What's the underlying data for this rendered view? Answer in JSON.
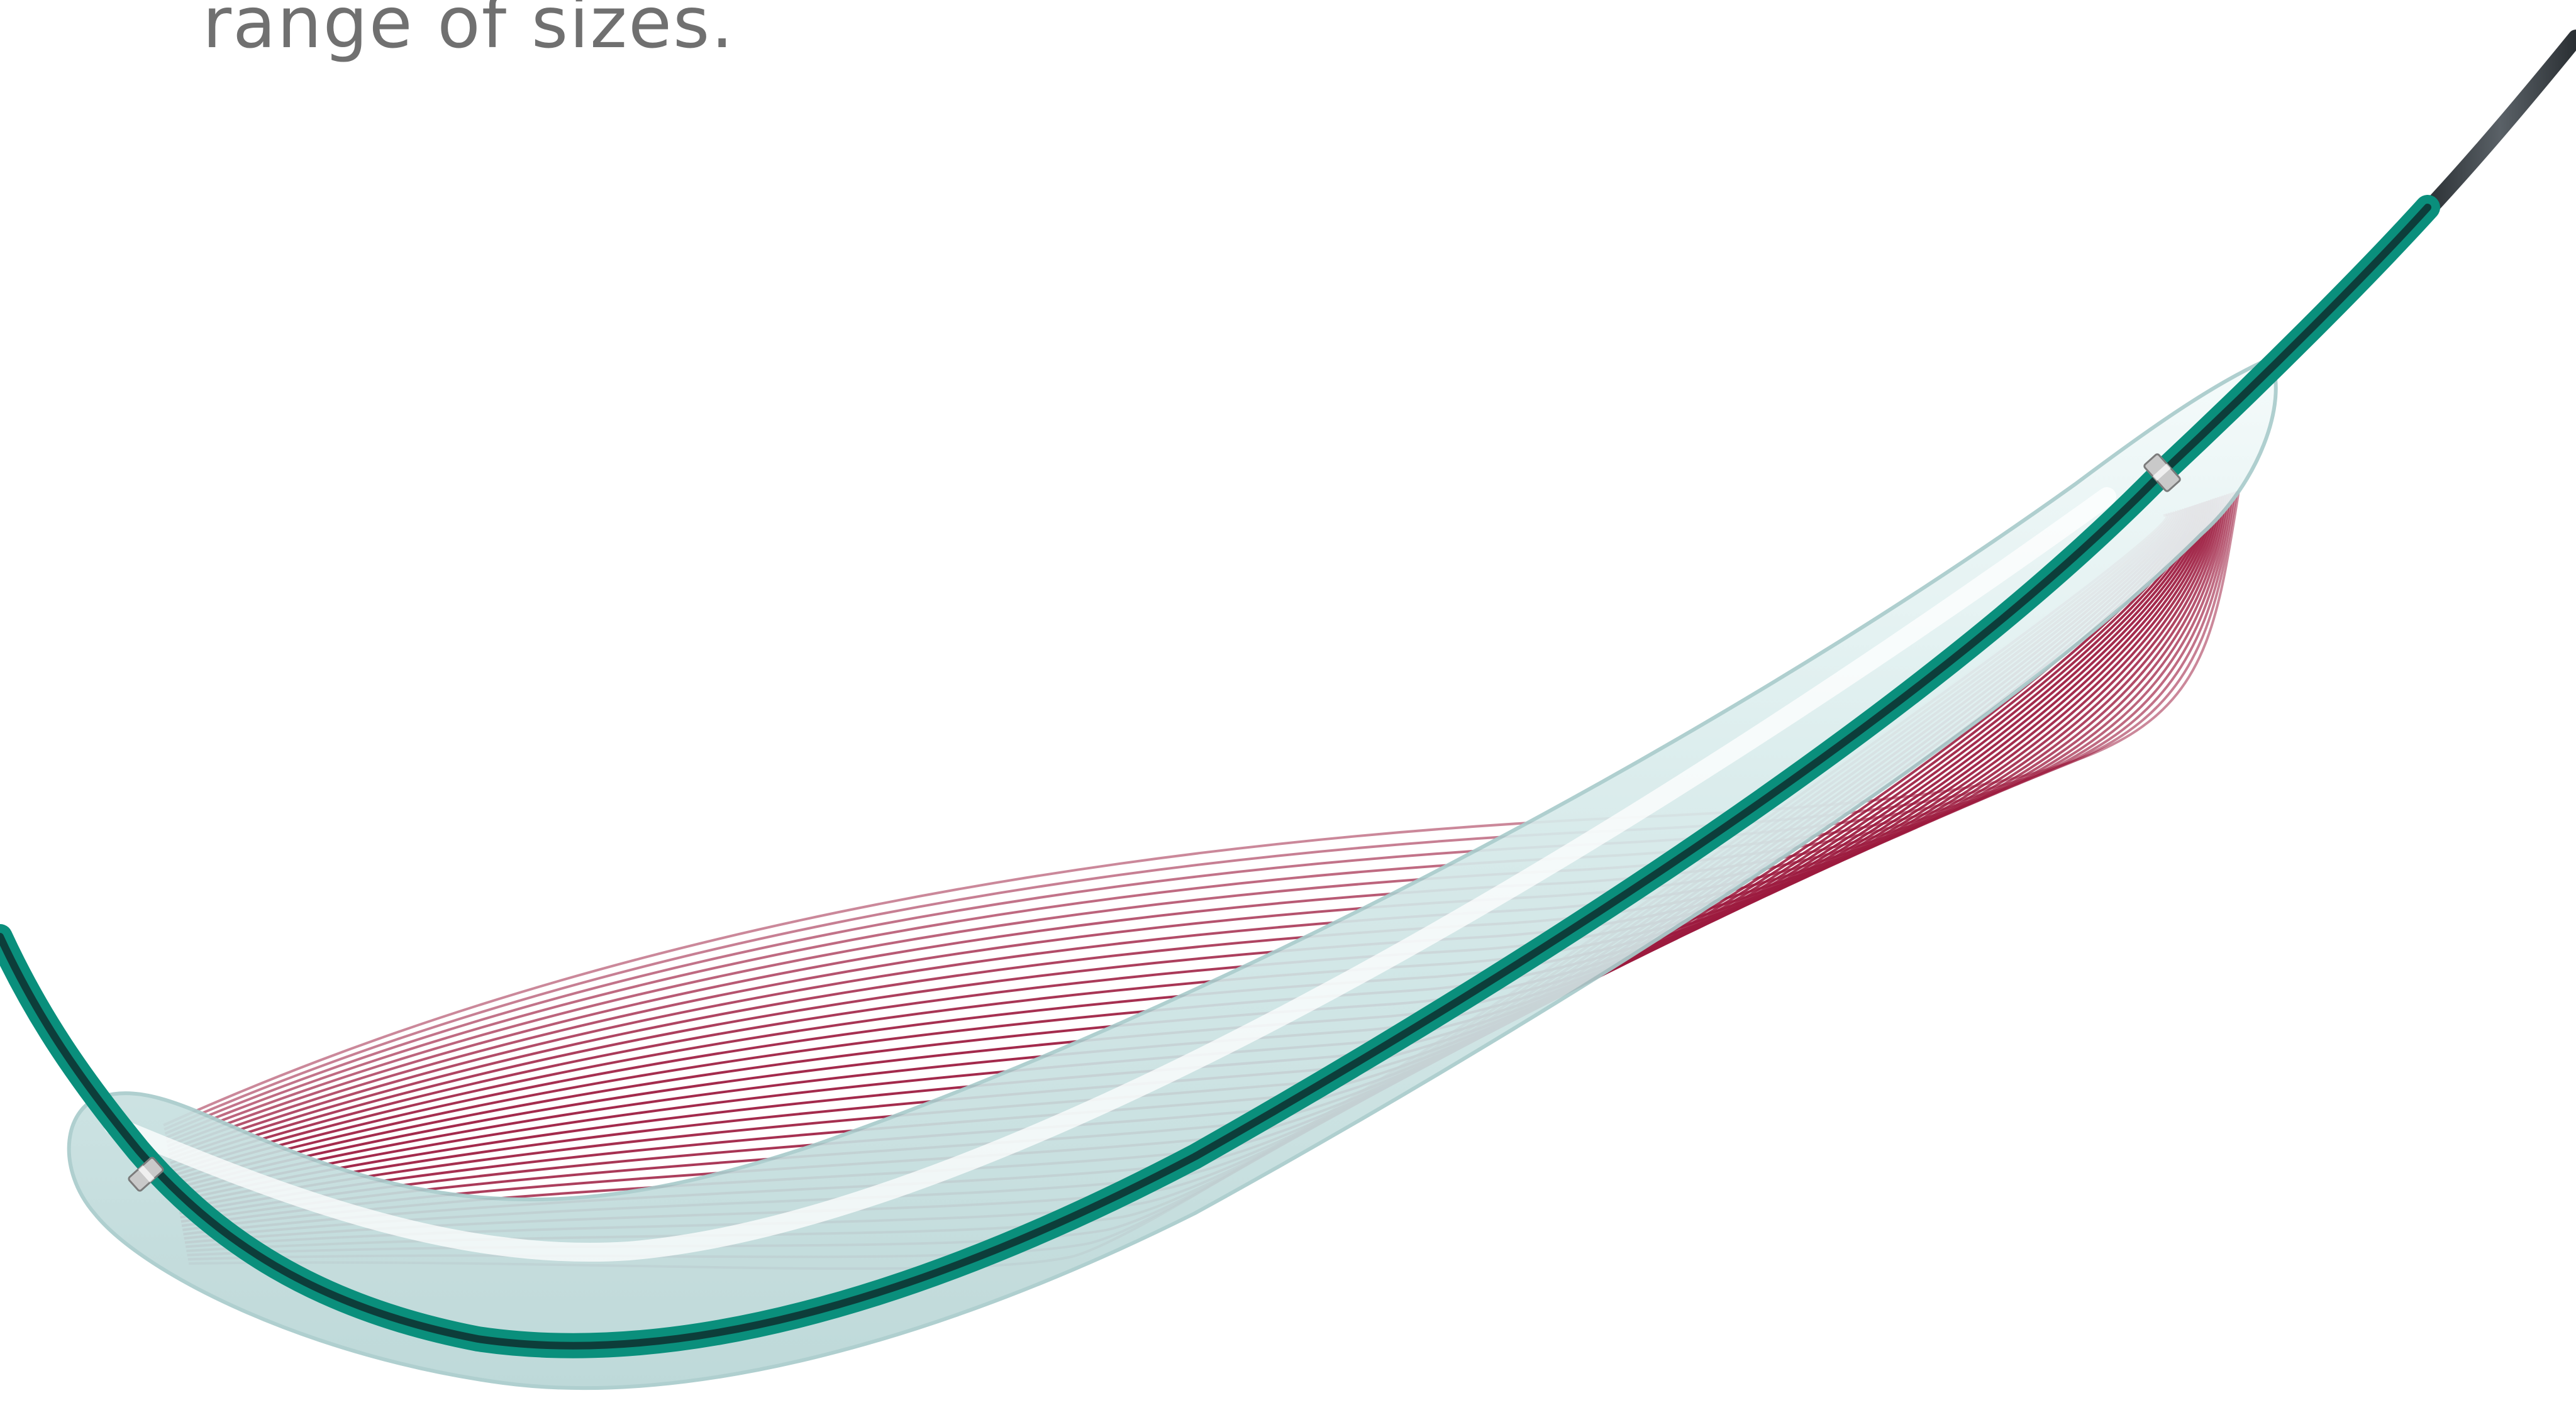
{
  "caption": {
    "text": "range of sizes."
  },
  "illustration": {
    "subject": "balloon-catheter",
    "colors": {
      "catheter_shaft": "#0a8f7c",
      "catheter_dark_core": "#0d3d3a",
      "balloon": "#d9ecec",
      "wave_lines": "#9c1a3e",
      "guidewire": "#3a3f44",
      "marker_band": "#b7b7b7",
      "caption_text": "#707070"
    }
  }
}
